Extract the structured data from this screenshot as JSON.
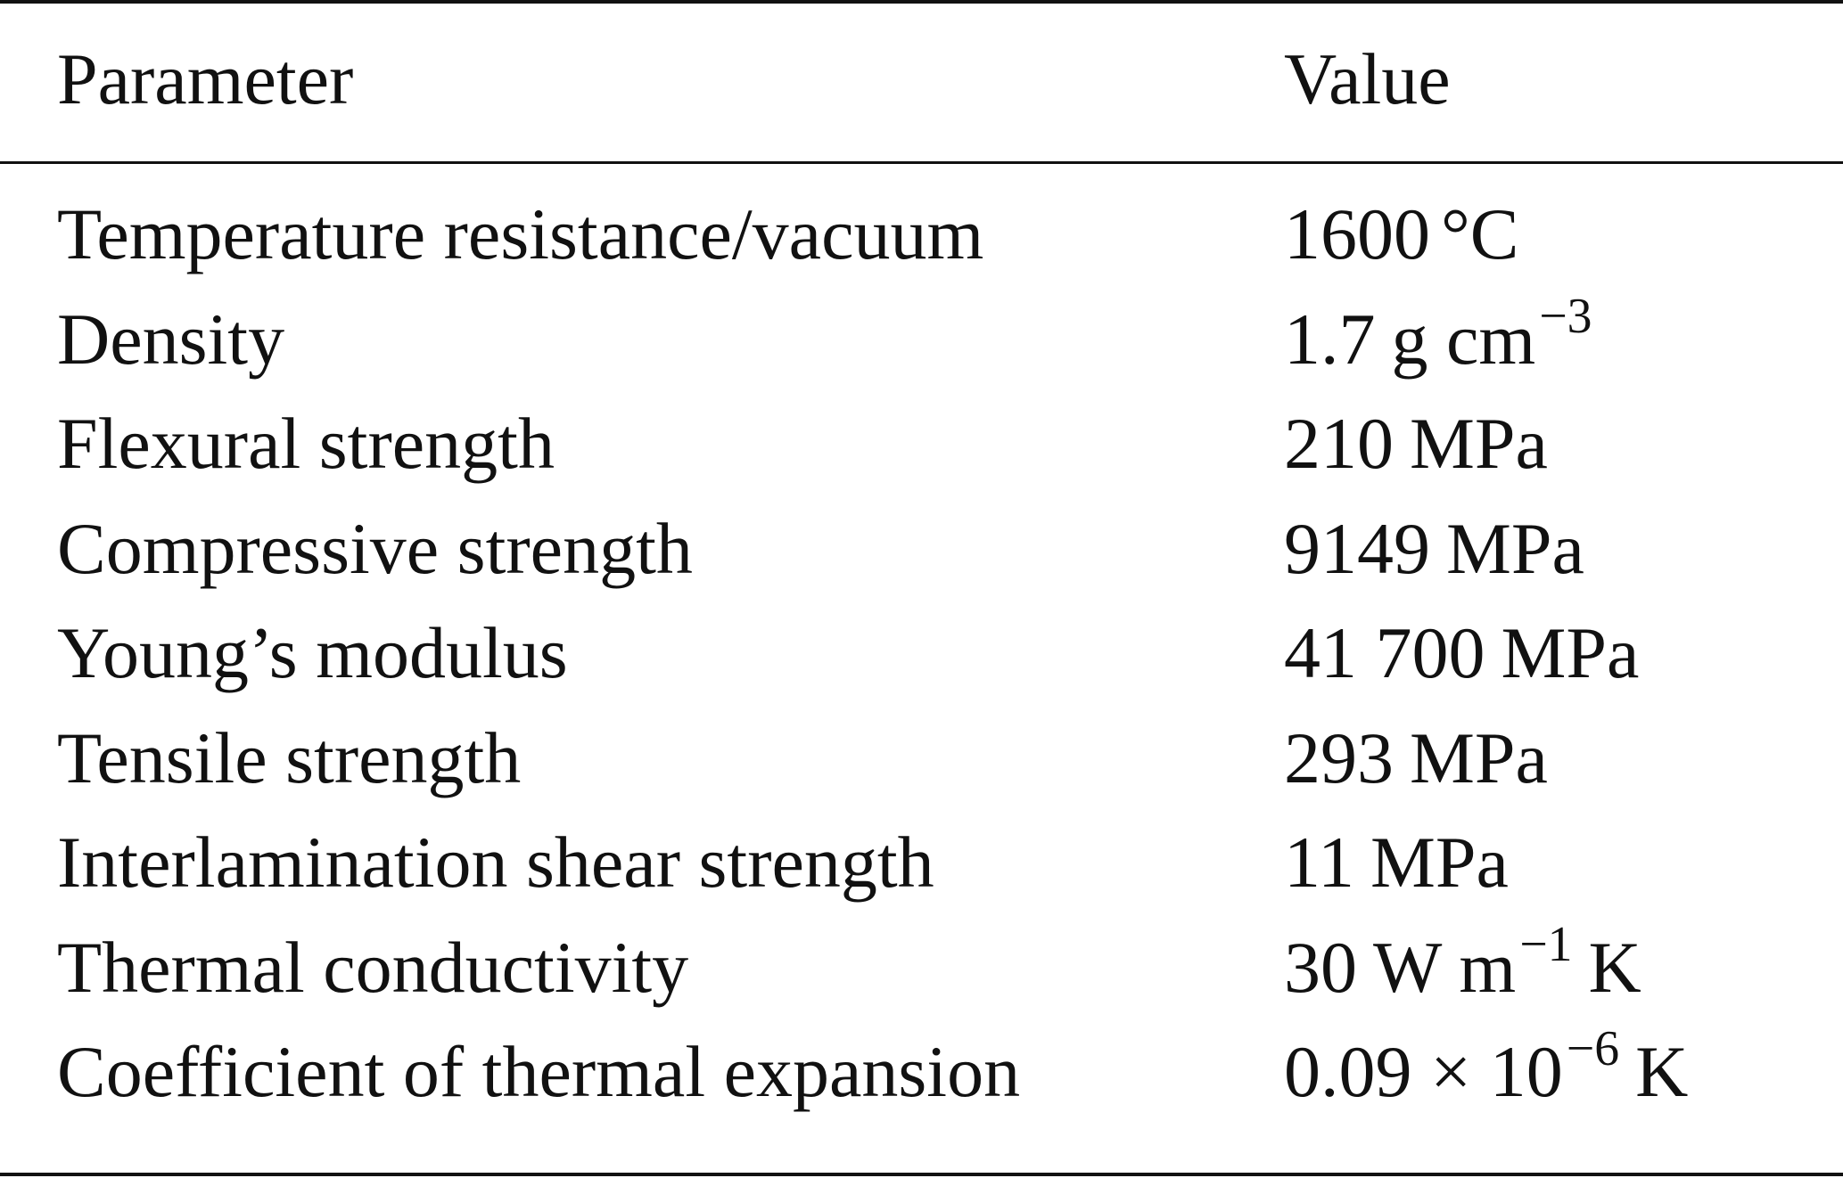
{
  "table": {
    "headers": {
      "parameter": "Parameter",
      "value": "Value"
    },
    "rows": [
      {
        "parameter": "Temperature resistance/vacuum",
        "value": {
          "num": "1600",
          "unit": "°C",
          "sup": "",
          "tail": ""
        }
      },
      {
        "parameter": "Density",
        "value": {
          "num": "1.7",
          "unit": "g cm",
          "sup": "−3",
          "tail": ""
        }
      },
      {
        "parameter": "Flexural strength",
        "value": {
          "num": "210",
          "unit": "MPa",
          "sup": "",
          "tail": ""
        }
      },
      {
        "parameter": "Compressive strength",
        "value": {
          "num": "9149",
          "unit": "MPa",
          "sup": "",
          "tail": ""
        }
      },
      {
        "parameter": "Young’s modulus",
        "value": {
          "num": "41 700",
          "unit": "MPa",
          "sup": "",
          "tail": ""
        }
      },
      {
        "parameter": "Tensile strength",
        "value": {
          "num": "293",
          "unit": "MPa",
          "sup": "",
          "tail": ""
        }
      },
      {
        "parameter": "Interlamination shear strength",
        "value": {
          "num": "11",
          "unit": "MPa",
          "sup": "",
          "tail": ""
        }
      },
      {
        "parameter": "Thermal conductivity",
        "value": {
          "num": "30",
          "unit": "W m",
          "sup": "−1",
          "tail": "K"
        }
      },
      {
        "parameter": "Coefficient of thermal expansion",
        "value": {
          "num": "0.09 × 10",
          "unit": "",
          "sup": "−6",
          "tail": "K"
        }
      }
    ]
  }
}
